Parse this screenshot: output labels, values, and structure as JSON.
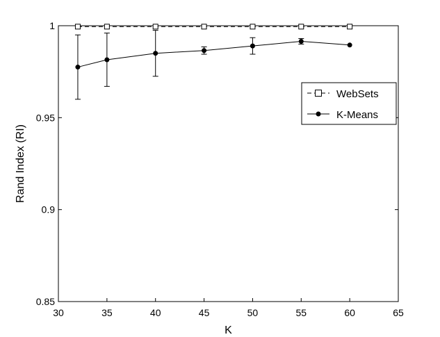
{
  "chart_data": {
    "type": "line",
    "xlabel": "K",
    "ylabel": "Rand Index (RI)",
    "xlim": [
      30,
      65
    ],
    "ylim": [
      0.85,
      1.0
    ],
    "xticks": [
      30,
      35,
      40,
      45,
      50,
      55,
      60,
      65
    ],
    "yticks": [
      0.85,
      0.9,
      0.95,
      1.0
    ],
    "xtick_labels": [
      "30",
      "35",
      "40",
      "45",
      "50",
      "55",
      "60",
      "65"
    ],
    "ytick_labels": [
      "0.85",
      "0.9",
      "0.95",
      "1"
    ],
    "grid": false,
    "legend_position": "right",
    "series": [
      {
        "name": "WebSets",
        "marker": "square",
        "line_style": "dashed",
        "color": "#000000",
        "x": [
          32,
          35,
          40,
          45,
          50,
          55,
          60
        ],
        "y": [
          0.9995,
          0.9995,
          0.9995,
          0.9995,
          0.9995,
          0.9995,
          0.9995
        ]
      },
      {
        "name": "K-Means",
        "marker": "filled-circle",
        "line_style": "solid",
        "color": "#000000",
        "x": [
          32,
          35,
          40,
          45,
          50,
          55,
          60
        ],
        "y": [
          0.9775,
          0.9815,
          0.985,
          0.9865,
          0.989,
          0.9915,
          0.9895
        ],
        "error": [
          0.0175,
          0.0145,
          0.0125,
          0.002,
          0.0045,
          0.0015,
          0.0
        ]
      }
    ]
  }
}
